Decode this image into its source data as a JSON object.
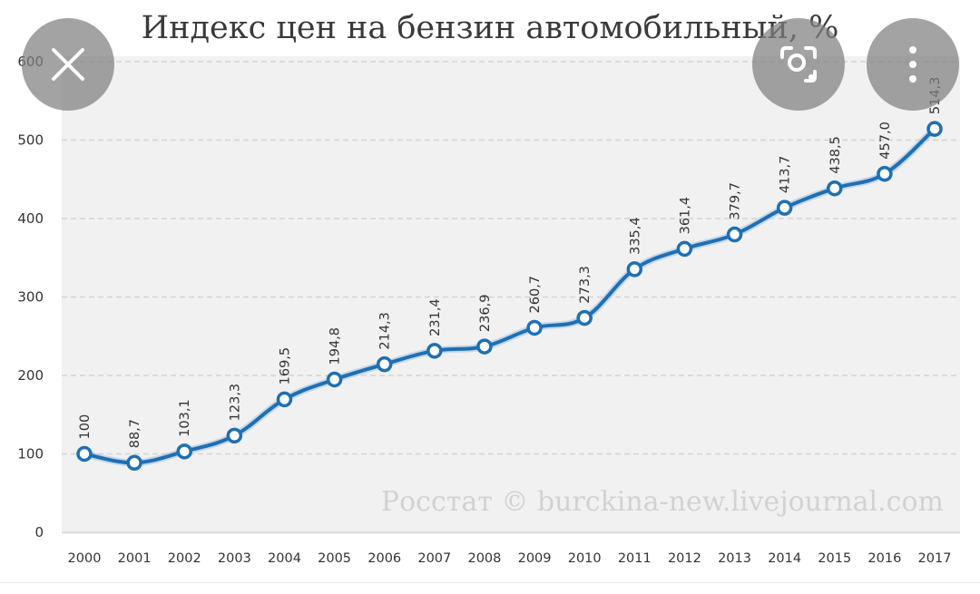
{
  "chart_data": {
    "type": "line",
    "title": "Индекс цен на бензин автомобильный, %",
    "xlabel": "",
    "ylabel": "",
    "ylim": [
      0,
      600
    ],
    "yticks": [
      "0",
      "100",
      "200",
      "300",
      "400",
      "500",
      "600"
    ],
    "grid": true,
    "categories": [
      "2000",
      "2001",
      "2002",
      "2003",
      "2004",
      "2005",
      "2006",
      "2007",
      "2008",
      "2009",
      "2010",
      "2011",
      "2012",
      "2013",
      "2014",
      "2015",
      "2016",
      "2017"
    ],
    "series": [
      {
        "values": [
          100,
          88.7,
          103.1,
          123.3,
          169.5,
          194.8,
          214.3,
          231.4,
          236.9,
          260.7,
          273.3,
          335.4,
          361.4,
          379.7,
          413.7,
          438.5,
          457.0,
          514.3
        ],
        "labels": [
          "100",
          "88,7",
          "103,1",
          "123,3",
          "169,5",
          "194,8",
          "214,3",
          "231,4",
          "236,9",
          "260,7",
          "273,3",
          "335,4",
          "361,4",
          "379,7",
          "413,7",
          "438,5",
          "457,0",
          "514,3"
        ],
        "color": "#1f6fb2"
      }
    ],
    "watermark": "Росстат © burckina-new.livejournal.com"
  },
  "colors": {
    "line": "#1f6fb2",
    "plot_bg": "#f1f1f1",
    "grid": "#d4d4d4"
  },
  "overlay": {
    "close_icon": "close-icon",
    "lens_icon": "lens-search-icon",
    "menu_icon": "more-vertical-icon"
  }
}
